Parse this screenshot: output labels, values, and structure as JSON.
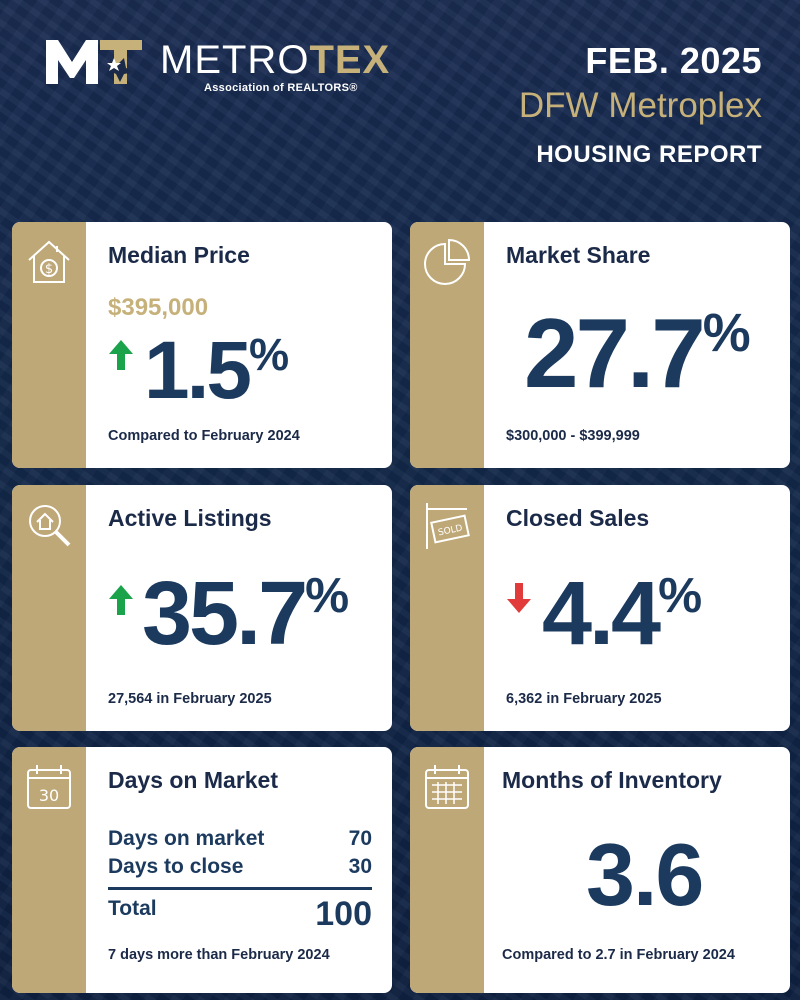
{
  "header": {
    "logo_word_a": "METRO",
    "logo_word_b": "TEX",
    "logo_sub": "Association of REALTORS®",
    "date": "FEB. 2025",
    "region": "DFW Metroplex",
    "report": "HOUSING REPORT"
  },
  "colors": {
    "navy": "#1b3a5e",
    "gold": "#c7b17a",
    "strip": "#bfa877",
    "up": "#1aa34a",
    "down": "#e23b3b"
  },
  "cards": {
    "median_price": {
      "title": "Median Price",
      "price": "$395,000",
      "trend": "up",
      "value": "1.5",
      "unit": "%",
      "footnote": "Compared to February 2024",
      "icon": "house-dollar-icon"
    },
    "market_share": {
      "title": "Market Share",
      "value": "27.7",
      "unit": "%",
      "footnote": "$300,000 - $399,999",
      "icon": "pie-chart-icon"
    },
    "active_listings": {
      "title": "Active Listings",
      "trend": "up",
      "value": "35.7",
      "unit": "%",
      "footnote": "27,564 in February 2025",
      "icon": "house-search-icon"
    },
    "closed_sales": {
      "title": "Closed Sales",
      "trend": "down",
      "value": "4.4",
      "unit": "%",
      "footnote": "6,362 in February 2025",
      "icon": "sold-sign-icon"
    },
    "days_on_market": {
      "title": "Days on Market",
      "icon_text": "30",
      "rows": [
        {
          "label": "Days on market",
          "value": "70"
        },
        {
          "label": "Days to close",
          "value": "30"
        }
      ],
      "total_label": "Total",
      "total_value": "100",
      "footnote": "7 days more than February 2024",
      "icon": "calendar-30-icon"
    },
    "months_inventory": {
      "title": "Months of Inventory",
      "value": "3.6",
      "footnote": "Compared to 2.7 in February 2024",
      "icon": "calendar-grid-icon"
    }
  }
}
